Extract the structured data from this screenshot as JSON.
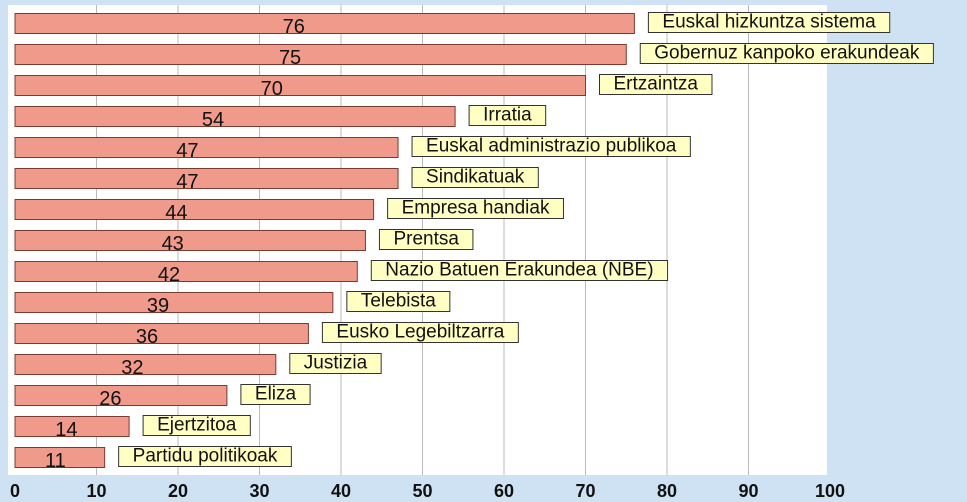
{
  "chart_data": {
    "type": "bar",
    "orientation": "horizontal",
    "categories": [
      "Euskal hizkuntza sistema",
      "Gobernuz kanpoko erakundeak",
      "Ertzaintza",
      "Irratia",
      "Euskal administrazio publikoa",
      "Sindikatuak",
      "Empresa handiak",
      "Prentsa",
      "Nazio Batuen Erakundea (NBE)",
      "Telebista",
      "Eusko Legebiltzarra",
      "Justizia",
      "Eliza",
      "Ejertzitoa",
      "Partidu politikoak"
    ],
    "values": [
      76,
      75,
      70,
      54,
      47,
      47,
      44,
      43,
      42,
      39,
      36,
      32,
      26,
      14,
      11
    ],
    "color": "#ef9a8a",
    "xlim": [
      0,
      100
    ],
    "xticks": [
      0,
      10,
      20,
      30,
      40,
      50,
      60,
      70,
      80,
      90,
      100
    ],
    "grid": true
  }
}
